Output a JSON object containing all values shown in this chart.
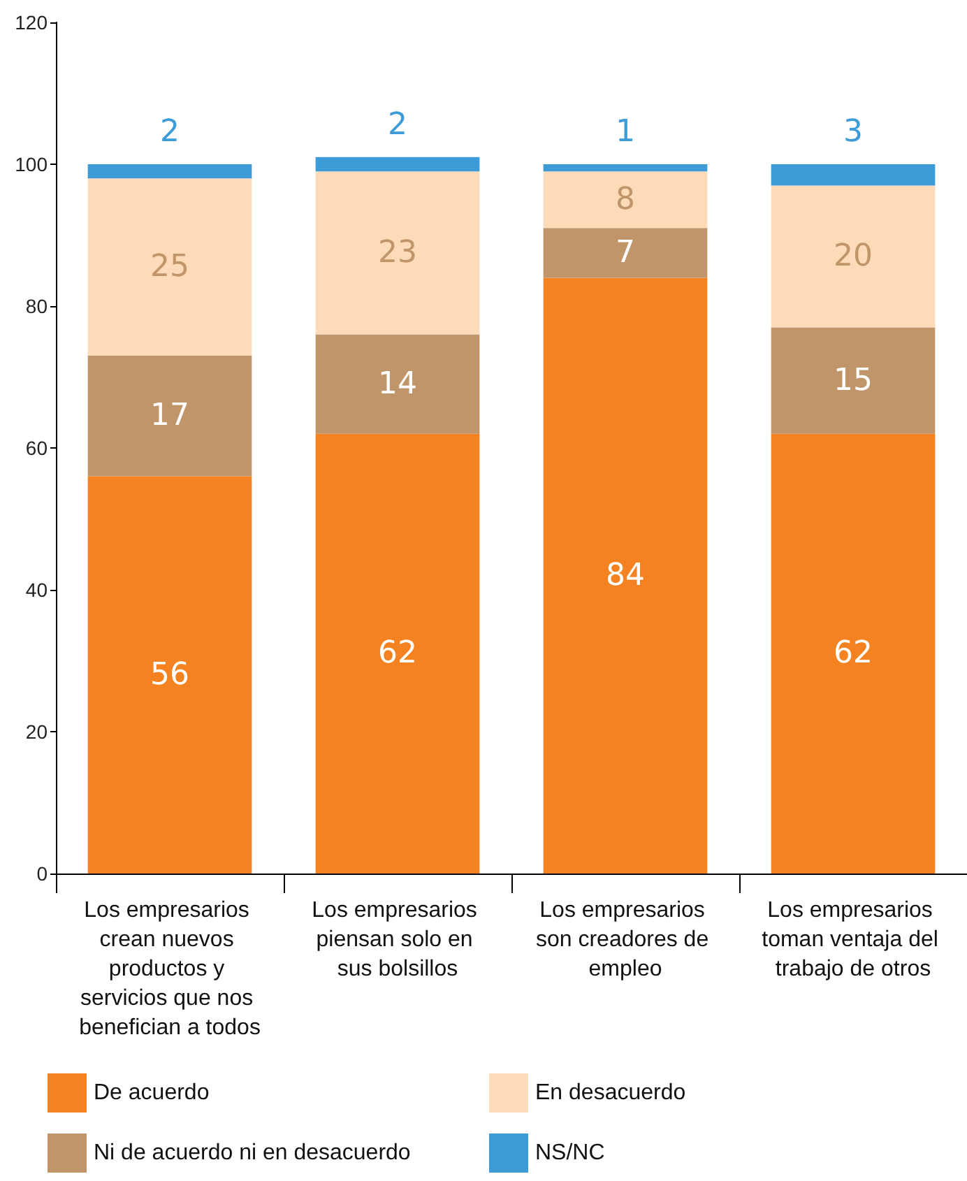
{
  "chart_data": {
    "type": "bar",
    "stacked": true,
    "data_labels": true,
    "grid": false,
    "legend": "bottom",
    "categories": [
      "Los empresarios crean nuevos productos y servicios que nos benefician a todos",
      "Los empresarios piensan solo en sus bolsillos",
      "Los empresarios son creadores de empleo",
      "Los empresarios toman ventaja del trabajo de otros"
    ],
    "ylim": [
      0,
      120
    ],
    "yticks": [
      0,
      20,
      40,
      60,
      80,
      100,
      120
    ],
    "series": [
      {
        "name": "De acuerdo",
        "color": "#f58220",
        "values": [
          56,
          62,
          84,
          62
        ]
      },
      {
        "name": "Ni de acuerdo ni en desacuerdo",
        "color": "#c0956a",
        "values": [
          17,
          14,
          7,
          15
        ]
      },
      {
        "name": "En desacuerdo",
        "color": "#fddab8",
        "values": [
          25,
          23,
          8,
          20
        ]
      },
      {
        "name": "NS/NC",
        "color": "#3d9bd7",
        "values": [
          2,
          2,
          1,
          3
        ]
      }
    ]
  }
}
